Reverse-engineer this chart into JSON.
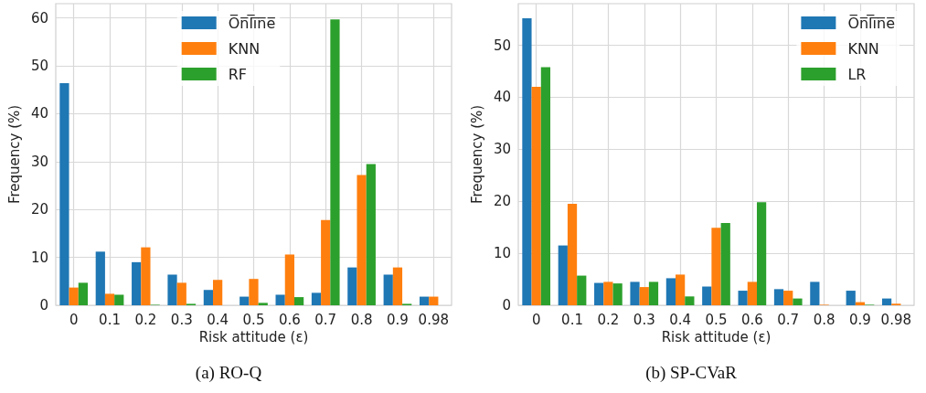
{
  "chart_data": [
    {
      "type": "bar",
      "title": "(a) RO-Q",
      "xlabel": "Risk attitude (ε)",
      "ylabel": "Frequency (%)",
      "categories": [
        "0",
        "0.1",
        "0.2",
        "0.3",
        "0.4",
        "0.5",
        "0.6",
        "0.7",
        "0.8",
        "0.9",
        "0.98"
      ],
      "series": [
        {
          "name": "O̅n̅l̅i̅n̅e̅",
          "color": "#1f77b4",
          "values": [
            46.4,
            11.2,
            9.0,
            6.4,
            3.2,
            1.8,
            2.2,
            2.6,
            7.9,
            6.4,
            1.8
          ]
        },
        {
          "name": "KNN",
          "color": "#ff7f0e",
          "values": [
            3.7,
            2.4,
            12.1,
            4.7,
            5.3,
            5.5,
            10.6,
            17.8,
            27.2,
            7.9,
            1.8
          ]
        },
        {
          "name": "RF",
          "color": "#2ca02c",
          "values": [
            4.7,
            2.2,
            0.1,
            0.3,
            0,
            0.5,
            1.7,
            59.7,
            29.5,
            0.3,
            0
          ]
        }
      ],
      "ylim": [
        0,
        63
      ],
      "yticks": [
        0,
        10,
        20,
        30,
        40,
        50,
        60
      ],
      "grid": true,
      "legend": "top"
    },
    {
      "type": "bar",
      "title": "(b) SP-CVaR",
      "xlabel": "Risk attitude (ε)",
      "ylabel": "Frequency (%)",
      "categories": [
        "0",
        "0.1",
        "0.2",
        "0.3",
        "0.4",
        "0.5",
        "0.6",
        "0.7",
        "0.8",
        "0.9",
        "0.98"
      ],
      "series": [
        {
          "name": "O̅n̅l̅i̅n̅e̅",
          "color": "#1f77b4",
          "values": [
            55.2,
            11.5,
            4.3,
            4.5,
            5.2,
            3.6,
            2.8,
            3.1,
            4.5,
            2.8,
            1.3
          ]
        },
        {
          "name": "KNN",
          "color": "#ff7f0e",
          "values": [
            42.0,
            19.5,
            4.5,
            3.5,
            5.9,
            14.9,
            4.5,
            2.8,
            0.1,
            0.6,
            0.3
          ]
        },
        {
          "name": "LR",
          "color": "#2ca02c",
          "values": [
            45.8,
            5.7,
            4.2,
            4.5,
            1.7,
            15.8,
            19.8,
            1.3,
            0,
            0.1,
            0
          ]
        }
      ],
      "ylim": [
        0,
        58
      ],
      "yticks": [
        0,
        10,
        20,
        30,
        40,
        50
      ],
      "grid": true,
      "legend": "top right"
    }
  ]
}
